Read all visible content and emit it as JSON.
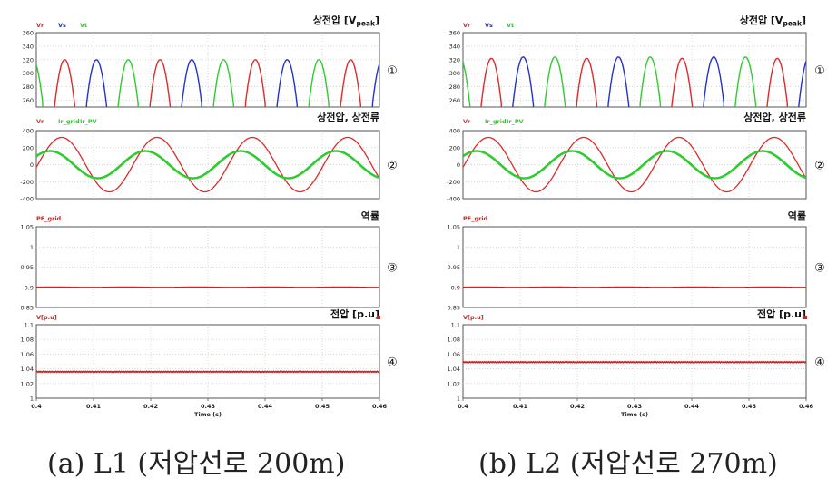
{
  "captions": [
    "(a) L1 (저압선로 200m)",
    "(b) L2 (저압선로 270m)"
  ],
  "time_axis": {
    "label": "Time (s)",
    "ticks": [
      "0.4",
      "0.41",
      "0.42",
      "0.43",
      "0.44",
      "0.45",
      "0.46"
    ],
    "range": [
      0.4,
      0.46
    ]
  },
  "colors": {
    "red": "#dd2a2a",
    "blue": "#2233cc",
    "green": "#2ecc2e",
    "pf": "#cc2222"
  },
  "chart_data": [
    {
      "case": "L1",
      "panels": [
        {
          "type": "line",
          "title": "상전압 [V",
          "title_sub": "peak",
          "title_end": "]",
          "marker": "①",
          "legend": [
            "Vr",
            "Vs",
            "Vt"
          ],
          "ylim": [
            250,
            360
          ],
          "yticks": [
            "360",
            "340",
            "320",
            "300",
            "280",
            "260"
          ],
          "series": [
            {
              "name": "Vr",
              "peak": 320,
              "phase_deg": 0
            },
            {
              "name": "Vs",
              "peak": 320,
              "phase_deg": -120
            },
            {
              "name": "Vt",
              "peak": 320,
              "phase_deg": 120
            }
          ],
          "frequency_hz": 60
        },
        {
          "type": "line",
          "title": "상전압, 상전류",
          "marker": "②",
          "legend": [
            "Vr",
            "Ir_grid",
            "Ir_PV"
          ],
          "ylim": [
            -400,
            400
          ],
          "yticks": [
            "400",
            "200",
            "0",
            "-200",
            "-400"
          ],
          "series": [
            {
              "name": "Vr",
              "peak": 320
            },
            {
              "name": "Ir_grid",
              "peak": 160
            },
            {
              "name": "Ir_PV",
              "peak": 160
            }
          ],
          "frequency_hz": 60
        },
        {
          "type": "line",
          "title": "역률",
          "marker": "③",
          "legend": [
            "PF_grid"
          ],
          "ylim": [
            0.85,
            1.05
          ],
          "yticks": [
            "1.05",
            "1",
            "0.95",
            "0.9",
            "0.85"
          ],
          "series": [
            {
              "name": "PF_grid",
              "value": 0.9
            }
          ]
        },
        {
          "type": "line",
          "title": "전압 [p.u]",
          "marker": "④",
          "legend": [
            "V[p.u]"
          ],
          "ylim": [
            1.0,
            1.1
          ],
          "yticks": [
            "1.1",
            "1.08",
            "1.06",
            "1.04",
            "1.02",
            "1"
          ],
          "series": [
            {
              "name": "V[p.u]",
              "value": 1.036
            }
          ]
        }
      ]
    },
    {
      "case": "L2",
      "panels": [
        {
          "type": "line",
          "title": "상전압 [V",
          "title_sub": "peak",
          "title_end": "]",
          "marker": "①",
          "legend": [
            "Vr",
            "Vs",
            "Vt"
          ],
          "ylim": [
            250,
            360
          ],
          "yticks": [
            "360",
            "340",
            "320",
            "300",
            "280",
            "260"
          ],
          "series": [
            {
              "name": "Vr",
              "peak": 322,
              "phase_deg": 0
            },
            {
              "name": "Vs",
              "peak": 324,
              "phase_deg": -120
            },
            {
              "name": "Vt",
              "peak": 324,
              "phase_deg": 120
            }
          ],
          "frequency_hz": 60
        },
        {
          "type": "line",
          "title": "상전압, 상전류",
          "marker": "②",
          "legend": [
            "Vr",
            "Ir_grid",
            "Ir_PV"
          ],
          "ylim": [
            -400,
            400
          ],
          "yticks": [
            "400",
            "200",
            "0",
            "-200",
            "-400"
          ],
          "series": [
            {
              "name": "Vr",
              "peak": 320
            },
            {
              "name": "Ir_grid",
              "peak": 160
            },
            {
              "name": "Ir_PV",
              "peak": 160
            }
          ],
          "frequency_hz": 60
        },
        {
          "type": "line",
          "title": "역률",
          "marker": "③",
          "legend": [
            "PF_grid"
          ],
          "ylim": [
            0.85,
            1.05
          ],
          "yticks": [
            "1.05",
            "1",
            "0.95",
            "0.9",
            "0.85"
          ],
          "series": [
            {
              "name": "PF_grid",
              "value": 0.9
            }
          ]
        },
        {
          "type": "line",
          "title": "전압 [p.u]",
          "marker": "④",
          "legend": [
            "V[p.u]"
          ],
          "ylim": [
            1.0,
            1.1
          ],
          "yticks": [
            "1.1",
            "1.08",
            "1.06",
            "1.04",
            "1.02",
            "1"
          ],
          "series": [
            {
              "name": "V[p.u]",
              "value": 1.049
            }
          ]
        }
      ]
    }
  ]
}
